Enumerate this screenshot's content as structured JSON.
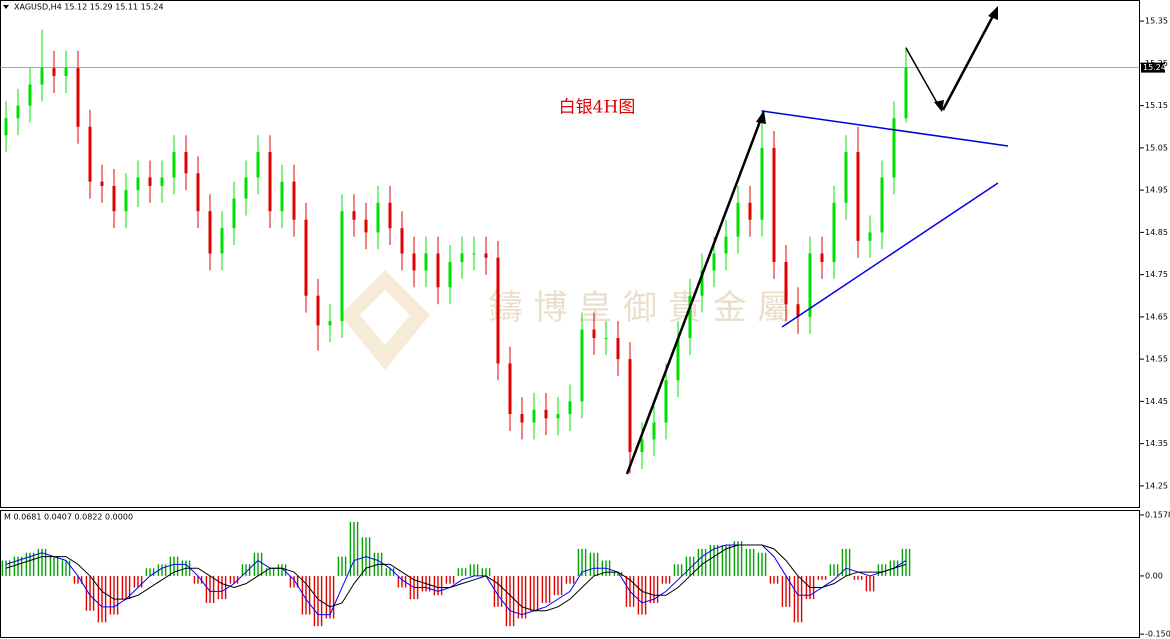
{
  "chart_data": [
    {
      "type": "candlestick",
      "title": "XAGUSD,H4  15.12 15.29 15.11 15.24",
      "annotation": "白银4H图",
      "watermark": "鑄 博 皇 御 貴 金 屬",
      "up_color": "#00e000",
      "down_color": "#e00000",
      "current_price": 15.24,
      "ylim": [
        14.2,
        15.4
      ],
      "yticks": [
        15.35,
        15.25,
        15.15,
        15.05,
        14.95,
        14.85,
        14.75,
        14.65,
        14.55,
        14.45,
        14.35,
        14.25
      ],
      "open": [
        15.08,
        15.12,
        15.15,
        15.2,
        15.24,
        15.22,
        15.24,
        15.1,
        14.97,
        14.96,
        14.9,
        14.95,
        14.98,
        14.96,
        14.98,
        15.04,
        14.99,
        14.9,
        14.8,
        14.86,
        14.93,
        14.98,
        15.04,
        14.9,
        14.97,
        14.88,
        14.7,
        14.63,
        14.64,
        14.9,
        14.88,
        14.85,
        14.92,
        14.86,
        14.8,
        14.76,
        14.8,
        14.72,
        14.78,
        14.8,
        14.8,
        14.79,
        14.54,
        14.42,
        14.4,
        14.43,
        14.41,
        14.42,
        14.45,
        14.62,
        14.6,
        14.6,
        14.55,
        14.33,
        14.36,
        14.4,
        14.5,
        14.6,
        14.7,
        14.76,
        14.8,
        14.84,
        14.92,
        14.88,
        15.05,
        14.78,
        14.68,
        14.65,
        14.8,
        14.78,
        14.92,
        15.04,
        14.83,
        14.85,
        14.98,
        15.12
      ],
      "high": [
        15.16,
        15.19,
        15.24,
        15.33,
        15.28,
        15.28,
        15.28,
        15.14,
        15.01,
        15,
        14.99,
        15.02,
        15.02,
        15.02,
        15.08,
        15.08,
        15.03,
        14.94,
        14.9,
        14.97,
        15.02,
        15.08,
        15.08,
        15.01,
        15.01,
        14.92,
        14.74,
        14.68,
        14.94,
        14.94,
        14.92,
        14.96,
        14.96,
        14.9,
        14.84,
        14.84,
        14.84,
        14.82,
        14.84,
        14.84,
        14.84,
        14.83,
        14.58,
        14.46,
        14.47,
        14.47,
        14.46,
        14.49,
        14.66,
        14.66,
        14.64,
        14.64,
        14.59,
        14.4,
        14.44,
        14.54,
        14.64,
        14.74,
        14.8,
        14.84,
        14.88,
        14.96,
        14.96,
        15.14,
        15.09,
        14.82,
        14.72,
        14.84,
        14.84,
        14.96,
        15.08,
        15.1,
        14.89,
        15.02,
        15.16,
        15.29
      ],
      "low": [
        15.04,
        15.08,
        15.11,
        15.16,
        15.18,
        15.18,
        15.06,
        14.93,
        14.92,
        14.86,
        14.86,
        14.91,
        14.92,
        14.92,
        14.94,
        14.95,
        14.86,
        14.76,
        14.76,
        14.82,
        14.89,
        14.94,
        14.86,
        14.86,
        14.84,
        14.66,
        14.57,
        14.59,
        14.6,
        14.84,
        14.81,
        14.81,
        14.82,
        14.76,
        14.72,
        14.72,
        14.68,
        14.68,
        14.74,
        14.76,
        14.75,
        14.5,
        14.38,
        14.36,
        14.36,
        14.37,
        14.37,
        14.38,
        14.41,
        14.56,
        14.56,
        14.51,
        14.28,
        14.29,
        14.32,
        14.36,
        14.46,
        14.56,
        14.66,
        14.72,
        14.76,
        14.8,
        14.84,
        14.84,
        14.74,
        14.64,
        14.61,
        14.61,
        14.74,
        14.74,
        14.88,
        14.79,
        14.79,
        14.81,
        14.94,
        15.11
      ],
      "close": [
        15.12,
        15.15,
        15.2,
        15.24,
        15.22,
        15.24,
        15.1,
        14.97,
        14.96,
        14.9,
        14.95,
        14.98,
        14.96,
        14.98,
        15.04,
        14.99,
        14.9,
        14.8,
        14.86,
        14.93,
        14.98,
        15.04,
        14.9,
        14.97,
        14.88,
        14.7,
        14.63,
        14.64,
        14.9,
        14.88,
        14.85,
        14.92,
        14.86,
        14.8,
        14.76,
        14.8,
        14.72,
        14.78,
        14.8,
        14.8,
        14.79,
        14.54,
        14.42,
        14.4,
        14.43,
        14.41,
        14.42,
        14.45,
        14.62,
        14.6,
        14.6,
        14.55,
        14.33,
        14.36,
        14.4,
        14.5,
        14.6,
        14.7,
        14.76,
        14.8,
        14.84,
        14.92,
        14.88,
        15.05,
        14.78,
        14.68,
        14.65,
        14.8,
        14.78,
        14.92,
        15.04,
        14.83,
        14.85,
        14.98,
        15.12,
        15.24
      ]
    },
    {
      "type": "macd",
      "title": "M 0.0681 0.0407 0.0822 0.0000",
      "ylim": [
        -0.158,
        0.168
      ],
      "yticks": [
        {
          "value": 0.1578,
          "label": "0.1578"
        },
        {
          "value": 0,
          "label": "0.00"
        },
        {
          "value": -0.1505,
          "label": "-0.1505"
        }
      ],
      "histogram": {
        "up_color": "#00a000",
        "down_color": "#e00000",
        "values": [
          0.04,
          0.05,
          0.06,
          0.07,
          0.05,
          0.04,
          -0.02,
          -0.09,
          -0.12,
          -0.1,
          -0.06,
          -0.03,
          0.02,
          0.03,
          0.05,
          0.04,
          -0.02,
          -0.07,
          -0.06,
          -0.02,
          0.03,
          0.06,
          0.02,
          0.03,
          -0.03,
          -0.1,
          -0.13,
          -0.11,
          0.05,
          0.14,
          0.1,
          0.06,
          0.02,
          -0.03,
          -0.06,
          -0.04,
          -0.05,
          -0.02,
          0.02,
          0.03,
          0.02,
          -0.08,
          -0.13,
          -0.11,
          -0.09,
          -0.07,
          -0.05,
          -0.02,
          0.07,
          0.06,
          0.04,
          0.01,
          -0.08,
          -0.1,
          -0.07,
          -0.02,
          0.03,
          0.05,
          0.07,
          0.08,
          0.08,
          0.09,
          0.07,
          0.06,
          -0.02,
          -0.08,
          -0.12,
          -0.06,
          -0.01,
          0.03,
          0.07,
          -0.01,
          -0.04,
          0.03,
          0.04,
          0.07
        ]
      },
      "lines": [
        {
          "color": "#0000ff",
          "values": [
            0.03,
            0.04,
            0.05,
            0.06,
            0.05,
            0.04,
            0,
            -0.05,
            -0.08,
            -0.08,
            -0.06,
            -0.03,
            0,
            0.02,
            0.03,
            0.03,
            0,
            -0.04,
            -0.04,
            -0.02,
            0.01,
            0.04,
            0.02,
            0.02,
            -0.01,
            -0.06,
            -0.1,
            -0.1,
            -0.03,
            0.04,
            0.05,
            0.04,
            0.02,
            -0.01,
            -0.03,
            -0.03,
            -0.04,
            -0.03,
            -0.01,
            0,
            0,
            -0.05,
            -0.09,
            -0.1,
            -0.09,
            -0.08,
            -0.06,
            -0.04,
            0.01,
            0.02,
            0.02,
            0.01,
            -0.04,
            -0.07,
            -0.06,
            -0.04,
            -0.01,
            0.02,
            0.05,
            0.07,
            0.08,
            0.08,
            0.08,
            0.08,
            0.05,
            0,
            -0.05,
            -0.05,
            -0.03,
            -0.01,
            0.02,
            0.01,
            0,
            0.01,
            0.02,
            0.04
          ]
        },
        {
          "color": "#000000",
          "values": [
            0.02,
            0.03,
            0.04,
            0.05,
            0.05,
            0.05,
            0.03,
            0,
            -0.04,
            -0.06,
            -0.06,
            -0.05,
            -0.03,
            -0.01,
            0.01,
            0.02,
            0.02,
            0,
            -0.02,
            -0.03,
            -0.02,
            0,
            0.02,
            0.02,
            0.01,
            -0.02,
            -0.06,
            -0.08,
            -0.07,
            -0.02,
            0.02,
            0.03,
            0.03,
            0.01,
            -0.01,
            -0.02,
            -0.03,
            -0.03,
            -0.02,
            -0.01,
            0,
            -0.02,
            -0.05,
            -0.08,
            -0.09,
            -0.09,
            -0.08,
            -0.06,
            -0.03,
            0,
            0.01,
            0.01,
            -0.01,
            -0.04,
            -0.05,
            -0.05,
            -0.03,
            0,
            0.03,
            0.05,
            0.07,
            0.08,
            0.08,
            0.08,
            0.07,
            0.04,
            0,
            -0.03,
            -0.03,
            -0.02,
            0,
            0.01,
            0.01,
            0.01,
            0.02,
            0.03
          ]
        }
      ]
    }
  ]
}
